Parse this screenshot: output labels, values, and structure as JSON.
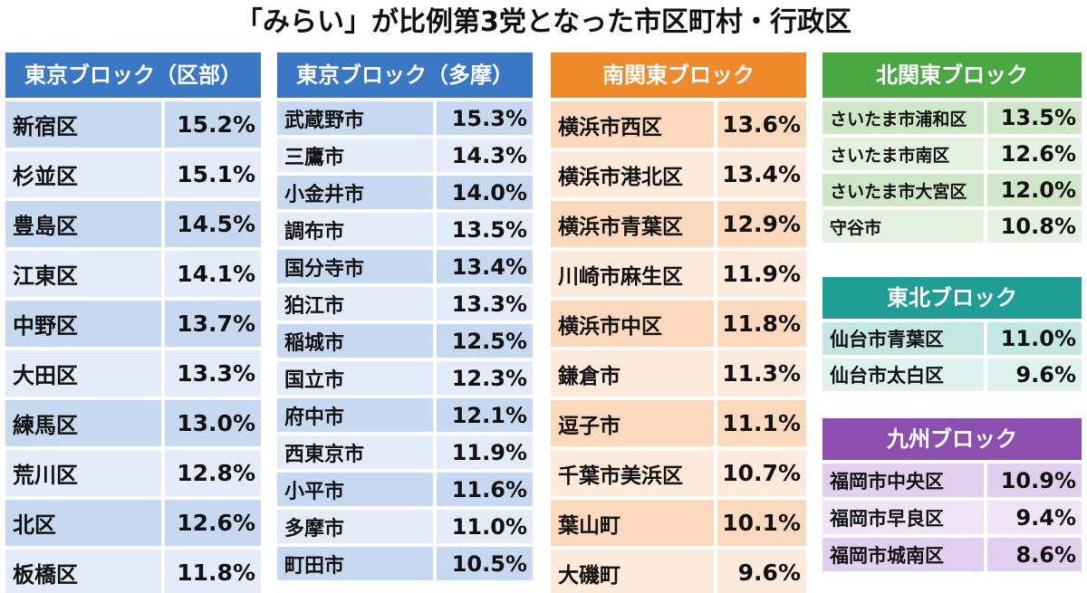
{
  "title": "「みらい」が比例第3党となった市区町村・行政区",
  "blocks": {
    "tokyo_ku": {
      "header": "東京ブロック（区部）",
      "rows": [
        {
          "name": "新宿区",
          "pct": "15.2%"
        },
        {
          "name": "杉並区",
          "pct": "15.1%"
        },
        {
          "name": "豊島区",
          "pct": "14.5%"
        },
        {
          "name": "江東区",
          "pct": "14.1%"
        },
        {
          "name": "中野区",
          "pct": "13.7%"
        },
        {
          "name": "大田区",
          "pct": "13.3%"
        },
        {
          "name": "練馬区",
          "pct": "13.0%"
        },
        {
          "name": "荒川区",
          "pct": "12.8%"
        },
        {
          "name": "北区",
          "pct": "12.6%"
        },
        {
          "name": "板橋区",
          "pct": "11.8%"
        }
      ]
    },
    "tokyo_tama": {
      "header": "東京ブロック（多摩）",
      "rows": [
        {
          "name": "武蔵野市",
          "pct": "15.3%"
        },
        {
          "name": "三鷹市",
          "pct": "14.3%"
        },
        {
          "name": "小金井市",
          "pct": "14.0%"
        },
        {
          "name": "調布市",
          "pct": "13.5%"
        },
        {
          "name": "国分寺市",
          "pct": "13.4%"
        },
        {
          "name": "狛江市",
          "pct": "13.3%"
        },
        {
          "name": "稲城市",
          "pct": "12.5%"
        },
        {
          "name": "国立市",
          "pct": "12.3%"
        },
        {
          "name": "府中市",
          "pct": "12.1%"
        },
        {
          "name": "西東京市",
          "pct": "11.9%"
        },
        {
          "name": "小平市",
          "pct": "11.6%"
        },
        {
          "name": "多摩市",
          "pct": "11.0%"
        },
        {
          "name": "町田市",
          "pct": "10.5%"
        }
      ]
    },
    "minami_kanto": {
      "header": "南関東ブロック",
      "rows": [
        {
          "name": "横浜市西区",
          "pct": "13.6%"
        },
        {
          "name": "横浜市港北区",
          "pct": "13.4%"
        },
        {
          "name": "横浜市青葉区",
          "pct": "12.9%"
        },
        {
          "name": "川崎市麻生区",
          "pct": "11.9%"
        },
        {
          "name": "横浜市中区",
          "pct": "11.8%"
        },
        {
          "name": "鎌倉市",
          "pct": "11.3%"
        },
        {
          "name": "逗子市",
          "pct": "11.1%"
        },
        {
          "name": "千葉市美浜区",
          "pct": "10.7%"
        },
        {
          "name": "葉山町",
          "pct": "10.1%"
        },
        {
          "name": "大磯町",
          "pct": "9.6%"
        }
      ]
    },
    "kita_kanto": {
      "header": "北関東ブロック",
      "rows": [
        {
          "name": "さいたま市浦和区",
          "pct": "13.5%"
        },
        {
          "name": "さいたま市南区",
          "pct": "12.6%"
        },
        {
          "name": "さいたま市大宮区",
          "pct": "12.0%"
        },
        {
          "name": "守谷市",
          "pct": "10.8%"
        }
      ]
    },
    "tohoku": {
      "header": "東北ブロック",
      "rows": [
        {
          "name": "仙台市青葉区",
          "pct": "11.0%"
        },
        {
          "name": "仙台市太白区",
          "pct": "9.6%"
        }
      ]
    },
    "kyushu": {
      "header": "九州ブロック",
      "rows": [
        {
          "name": "福岡市中央区",
          "pct": "10.9%"
        },
        {
          "name": "福岡市早良区",
          "pct": "9.4%"
        },
        {
          "name": "福岡市城南区",
          "pct": "8.6%"
        }
      ]
    }
  },
  "colors": {
    "tokyo": "#3a77c4",
    "minami_kanto": "#ef8a2a",
    "kita_kanto": "#4aa843",
    "tohoku": "#1f9e95",
    "kyushu": "#8a4fb0"
  }
}
